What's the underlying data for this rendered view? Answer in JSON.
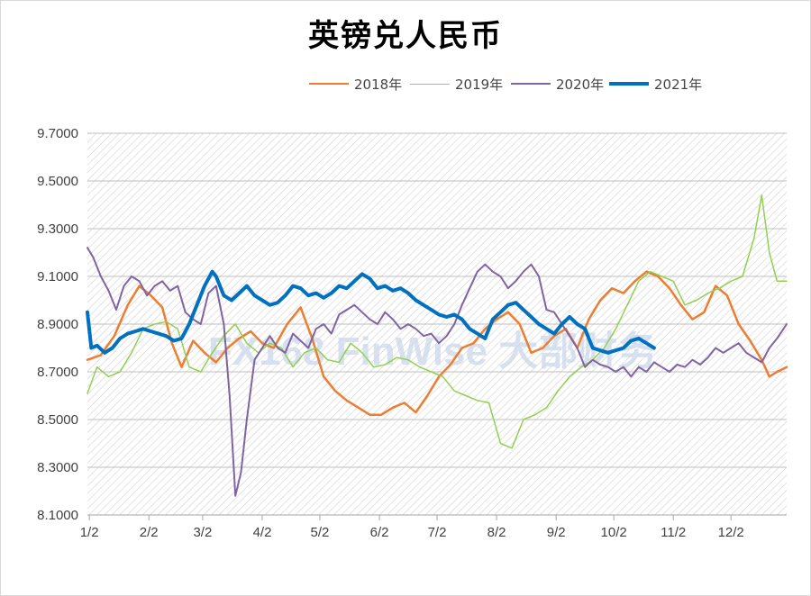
{
  "chart_data": {
    "type": "line",
    "title": "英镑兑人民币",
    "xlabel": "",
    "ylabel": "",
    "ylim": [
      8.1,
      9.7
    ],
    "yticks": [
      "9.7000",
      "9.5000",
      "9.3000",
      "9.1000",
      "8.9000",
      "8.7000",
      "8.5000",
      "8.3000",
      "8.1000"
    ],
    "xticks": [
      "1/2",
      "2/2",
      "3/2",
      "4/2",
      "5/2",
      "6/2",
      "7/2",
      "8/2",
      "9/2",
      "10/2",
      "11/2",
      "12/2"
    ],
    "grid": true,
    "legend_position": "top",
    "watermark": "FX168 FinWise 大部财务",
    "series": [
      {
        "name": "2018年",
        "color": "#ED7D31",
        "width": 2.5,
        "points": [
          [
            1,
            8.75
          ],
          [
            8,
            8.77
          ],
          [
            15,
            8.85
          ],
          [
            22,
            8.98
          ],
          [
            28,
            9.06
          ],
          [
            34,
            9.02
          ],
          [
            40,
            8.97
          ],
          [
            45,
            8.82
          ],
          [
            50,
            8.72
          ],
          [
            56,
            8.83
          ],
          [
            62,
            8.78
          ],
          [
            68,
            8.74
          ],
          [
            74,
            8.8
          ],
          [
            80,
            8.84
          ],
          [
            86,
            8.87
          ],
          [
            92,
            8.82
          ],
          [
            98,
            8.8
          ],
          [
            105,
            8.9
          ],
          [
            112,
            8.97
          ],
          [
            118,
            8.84
          ],
          [
            124,
            8.68
          ],
          [
            130,
            8.62
          ],
          [
            136,
            8.58
          ],
          [
            142,
            8.55
          ],
          [
            148,
            8.52
          ],
          [
            154,
            8.52
          ],
          [
            160,
            8.55
          ],
          [
            166,
            8.57
          ],
          [
            172,
            8.53
          ],
          [
            178,
            8.6
          ],
          [
            184,
            8.68
          ],
          [
            190,
            8.73
          ],
          [
            196,
            8.8
          ],
          [
            202,
            8.82
          ],
          [
            208,
            8.88
          ],
          [
            214,
            8.92
          ],
          [
            220,
            8.95
          ],
          [
            226,
            8.9
          ],
          [
            232,
            8.78
          ],
          [
            238,
            8.8
          ],
          [
            244,
            8.85
          ],
          [
            250,
            8.88
          ],
          [
            256,
            8.8
          ],
          [
            262,
            8.92
          ],
          [
            268,
            9.0
          ],
          [
            274,
            9.05
          ],
          [
            280,
            9.03
          ],
          [
            286,
            9.08
          ],
          [
            292,
            9.12
          ],
          [
            298,
            9.1
          ],
          [
            304,
            9.05
          ],
          [
            310,
            8.98
          ],
          [
            316,
            8.92
          ],
          [
            322,
            8.95
          ],
          [
            328,
            9.06
          ],
          [
            334,
            9.02
          ],
          [
            340,
            8.9
          ],
          [
            346,
            8.83
          ],
          [
            352,
            8.75
          ],
          [
            356,
            8.68
          ],
          [
            360,
            8.7
          ],
          [
            365,
            8.72
          ]
        ]
      },
      {
        "name": "2019年",
        "color": "#92D050",
        "width": 1.5,
        "points": [
          [
            1,
            8.61
          ],
          [
            6,
            8.72
          ],
          [
            12,
            8.68
          ],
          [
            18,
            8.7
          ],
          [
            24,
            8.78
          ],
          [
            30,
            8.88
          ],
          [
            36,
            8.9
          ],
          [
            42,
            8.91
          ],
          [
            48,
            8.88
          ],
          [
            54,
            8.72
          ],
          [
            60,
            8.7
          ],
          [
            66,
            8.78
          ],
          [
            72,
            8.85
          ],
          [
            78,
            8.9
          ],
          [
            84,
            8.82
          ],
          [
            90,
            8.78
          ],
          [
            96,
            8.82
          ],
          [
            102,
            8.8
          ],
          [
            108,
            8.72
          ],
          [
            114,
            8.78
          ],
          [
            120,
            8.8
          ],
          [
            126,
            8.75
          ],
          [
            132,
            8.74
          ],
          [
            138,
            8.82
          ],
          [
            144,
            8.78
          ],
          [
            150,
            8.72
          ],
          [
            156,
            8.73
          ],
          [
            162,
            8.76
          ],
          [
            168,
            8.75
          ],
          [
            174,
            8.72
          ],
          [
            180,
            8.7
          ],
          [
            186,
            8.68
          ],
          [
            192,
            8.62
          ],
          [
            198,
            8.6
          ],
          [
            204,
            8.58
          ],
          [
            210,
            8.57
          ],
          [
            216,
            8.4
          ],
          [
            222,
            8.38
          ],
          [
            228,
            8.5
          ],
          [
            234,
            8.52
          ],
          [
            240,
            8.55
          ],
          [
            246,
            8.62
          ],
          [
            252,
            8.68
          ],
          [
            258,
            8.72
          ],
          [
            264,
            8.75
          ],
          [
            270,
            8.8
          ],
          [
            276,
            8.88
          ],
          [
            282,
            8.98
          ],
          [
            288,
            9.08
          ],
          [
            294,
            9.12
          ],
          [
            300,
            9.1
          ],
          [
            306,
            9.08
          ],
          [
            312,
            8.98
          ],
          [
            318,
            9.0
          ],
          [
            324,
            9.03
          ],
          [
            330,
            9.05
          ],
          [
            336,
            9.08
          ],
          [
            342,
            9.1
          ],
          [
            348,
            9.26
          ],
          [
            352,
            9.44
          ],
          [
            356,
            9.2
          ],
          [
            360,
            9.08
          ],
          [
            365,
            9.08
          ]
        ]
      },
      {
        "name": "2020年",
        "color": "#8064A2",
        "width": 2.0,
        "points": [
          [
            1,
            9.22
          ],
          [
            4,
            9.18
          ],
          [
            8,
            9.1
          ],
          [
            12,
            9.04
          ],
          [
            16,
            8.96
          ],
          [
            20,
            9.06
          ],
          [
            24,
            9.1
          ],
          [
            28,
            9.08
          ],
          [
            32,
            9.02
          ],
          [
            36,
            9.06
          ],
          [
            40,
            9.08
          ],
          [
            44,
            9.04
          ],
          [
            48,
            9.06
          ],
          [
            52,
            8.95
          ],
          [
            56,
            8.92
          ],
          [
            60,
            8.9
          ],
          [
            64,
            9.03
          ],
          [
            68,
            9.06
          ],
          [
            72,
            8.9
          ],
          [
            75,
            8.6
          ],
          [
            78,
            8.18
          ],
          [
            81,
            8.28
          ],
          [
            84,
            8.5
          ],
          [
            88,
            8.75
          ],
          [
            92,
            8.8
          ],
          [
            96,
            8.85
          ],
          [
            100,
            8.8
          ],
          [
            104,
            8.78
          ],
          [
            108,
            8.86
          ],
          [
            112,
            8.83
          ],
          [
            116,
            8.8
          ],
          [
            120,
            8.88
          ],
          [
            124,
            8.9
          ],
          [
            128,
            8.86
          ],
          [
            132,
            8.94
          ],
          [
            136,
            8.96
          ],
          [
            140,
            8.98
          ],
          [
            144,
            8.95
          ],
          [
            148,
            8.92
          ],
          [
            152,
            8.9
          ],
          [
            156,
            8.95
          ],
          [
            160,
            8.92
          ],
          [
            164,
            8.88
          ],
          [
            168,
            8.9
          ],
          [
            172,
            8.88
          ],
          [
            176,
            8.85
          ],
          [
            180,
            8.86
          ],
          [
            184,
            8.82
          ],
          [
            188,
            8.85
          ],
          [
            192,
            8.9
          ],
          [
            196,
            8.98
          ],
          [
            200,
            9.05
          ],
          [
            204,
            9.12
          ],
          [
            208,
            9.15
          ],
          [
            212,
            9.12
          ],
          [
            216,
            9.1
          ],
          [
            220,
            9.05
          ],
          [
            224,
            9.08
          ],
          [
            228,
            9.12
          ],
          [
            232,
            9.15
          ],
          [
            236,
            9.1
          ],
          [
            240,
            8.96
          ],
          [
            244,
            8.95
          ],
          [
            248,
            8.9
          ],
          [
            252,
            8.85
          ],
          [
            256,
            8.8
          ],
          [
            260,
            8.72
          ],
          [
            264,
            8.75
          ],
          [
            268,
            8.73
          ],
          [
            272,
            8.72
          ],
          [
            276,
            8.7
          ],
          [
            280,
            8.72
          ],
          [
            284,
            8.68
          ],
          [
            288,
            8.72
          ],
          [
            292,
            8.7
          ],
          [
            296,
            8.74
          ],
          [
            300,
            8.72
          ],
          [
            304,
            8.7
          ],
          [
            308,
            8.73
          ],
          [
            312,
            8.72
          ],
          [
            316,
            8.75
          ],
          [
            320,
            8.73
          ],
          [
            324,
            8.76
          ],
          [
            328,
            8.8
          ],
          [
            332,
            8.78
          ],
          [
            336,
            8.8
          ],
          [
            340,
            8.82
          ],
          [
            344,
            8.78
          ],
          [
            348,
            8.76
          ],
          [
            352,
            8.74
          ],
          [
            356,
            8.8
          ],
          [
            360,
            8.84
          ],
          [
            365,
            8.9
          ]
        ]
      },
      {
        "name": "2021年",
        "color": "#0070C0",
        "width": 4.0,
        "points": [
          [
            1,
            8.95
          ],
          [
            3,
            8.8
          ],
          [
            6,
            8.81
          ],
          [
            10,
            8.78
          ],
          [
            14,
            8.8
          ],
          [
            18,
            8.84
          ],
          [
            22,
            8.86
          ],
          [
            26,
            8.87
          ],
          [
            30,
            8.88
          ],
          [
            34,
            8.87
          ],
          [
            38,
            8.86
          ],
          [
            42,
            8.85
          ],
          [
            46,
            8.83
          ],
          [
            50,
            8.84
          ],
          [
            54,
            8.9
          ],
          [
            58,
            8.98
          ],
          [
            62,
            9.06
          ],
          [
            66,
            9.12
          ],
          [
            68,
            9.1
          ],
          [
            72,
            9.02
          ],
          [
            76,
            9.0
          ],
          [
            80,
            9.03
          ],
          [
            84,
            9.06
          ],
          [
            88,
            9.02
          ],
          [
            92,
            9.0
          ],
          [
            96,
            8.98
          ],
          [
            100,
            8.99
          ],
          [
            104,
            9.02
          ],
          [
            108,
            9.06
          ],
          [
            112,
            9.05
          ],
          [
            116,
            9.02
          ],
          [
            120,
            9.03
          ],
          [
            124,
            9.01
          ],
          [
            128,
            9.03
          ],
          [
            132,
            9.06
          ],
          [
            136,
            9.05
          ],
          [
            140,
            9.08
          ],
          [
            144,
            9.11
          ],
          [
            148,
            9.09
          ],
          [
            152,
            9.05
          ],
          [
            156,
            9.06
          ],
          [
            160,
            9.04
          ],
          [
            164,
            9.05
          ],
          [
            168,
            9.03
          ],
          [
            172,
            9.0
          ],
          [
            176,
            8.98
          ],
          [
            180,
            8.96
          ],
          [
            184,
            8.94
          ],
          [
            188,
            8.93
          ],
          [
            192,
            8.94
          ],
          [
            196,
            8.92
          ],
          [
            200,
            8.88
          ],
          [
            204,
            8.86
          ],
          [
            208,
            8.84
          ],
          [
            212,
            8.92
          ],
          [
            216,
            8.95
          ],
          [
            220,
            8.98
          ],
          [
            224,
            8.99
          ],
          [
            228,
            8.96
          ],
          [
            232,
            8.93
          ],
          [
            236,
            8.9
          ],
          [
            240,
            8.88
          ],
          [
            244,
            8.86
          ],
          [
            248,
            8.9
          ],
          [
            252,
            8.93
          ],
          [
            256,
            8.9
          ],
          [
            260,
            8.88
          ],
          [
            264,
            8.8
          ],
          [
            268,
            8.79
          ],
          [
            272,
            8.78
          ],
          [
            276,
            8.79
          ],
          [
            280,
            8.8
          ],
          [
            284,
            8.83
          ],
          [
            288,
            8.84
          ],
          [
            292,
            8.82
          ],
          [
            296,
            8.8
          ]
        ]
      }
    ]
  }
}
